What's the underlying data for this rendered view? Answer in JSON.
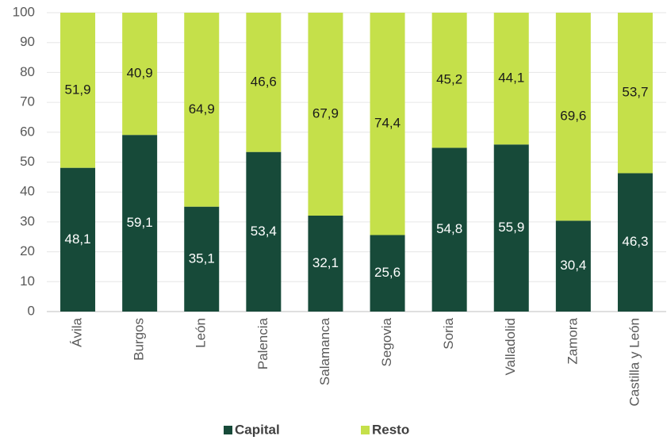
{
  "chart_data": {
    "type": "stacked_bar",
    "categories": [
      "Ávila",
      "Burgos",
      "León",
      "Palencia",
      "Salamanca",
      "Segovia",
      "Soria",
      "Valladolid",
      "Zamora",
      "Castilla y León"
    ],
    "series": [
      {
        "name": "Capital",
        "color": "#174a39",
        "values": [
          48.1,
          59.1,
          35.1,
          53.4,
          32.1,
          25.6,
          54.8,
          55.9,
          30.4,
          46.3
        ],
        "value_labels": [
          "48,1",
          "59,1",
          "35,1",
          "53,4",
          "32,1",
          "25,6",
          "54,8",
          "55,9",
          "30,4",
          "46,3"
        ]
      },
      {
        "name": "Resto",
        "color": "#c5e04a",
        "values": [
          51.9,
          40.9,
          64.9,
          46.6,
          67.9,
          74.4,
          45.2,
          44.1,
          69.6,
          53.7
        ],
        "value_labels": [
          "51,9",
          "40,9",
          "64,9",
          "46,6",
          "67,9",
          "74,4",
          "45,2",
          "44,1",
          "69,6",
          "53,7"
        ]
      }
    ],
    "ylim": [
      0,
      100
    ],
    "yticks": [
      0,
      10,
      20,
      30,
      40,
      50,
      60,
      70,
      80,
      90,
      100
    ],
    "grid": true,
    "legend": "bottom"
  }
}
